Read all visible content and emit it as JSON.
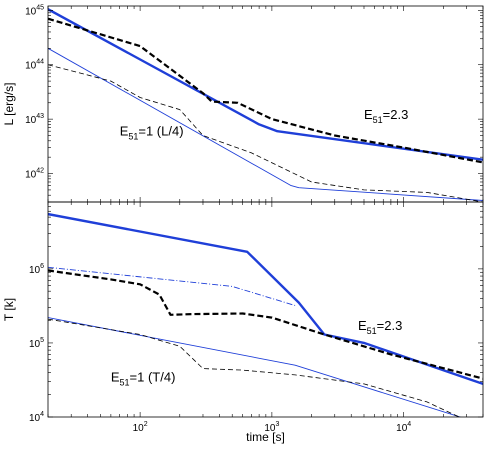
{
  "chart_data": [
    {
      "type": "line",
      "ylabel": "L [erg/s]",
      "xlabel": "",
      "xscale": "log",
      "yscale": "log",
      "xlim": [
        20,
        40000
      ],
      "ylim": [
        3e+41,
        1.2e+45
      ],
      "yticks": [
        {
          "value": 1e+42,
          "base": "10",
          "exp": "42"
        },
        {
          "value": 1e+43,
          "base": "10",
          "exp": "43"
        },
        {
          "value": 1e+44,
          "base": "10",
          "exp": "44"
        },
        {
          "value": 1e+45,
          "base": "10",
          "exp": "45"
        }
      ],
      "annotations": [
        {
          "id": "e23",
          "pre": "E",
          "sub": "51",
          "post": "=2.3",
          "x": 5000,
          "y": 1e+43
        },
        {
          "id": "e1",
          "pre": "E",
          "sub": "51",
          "post": "=1 (L/4)",
          "x": 70,
          "y": 5e+42
        }
      ],
      "series": [
        {
          "id": "thick-solid",
          "color": "#1f3fd8",
          "width": 2.4,
          "dash": "",
          "points": [
            [
              20,
              1.05e+45
            ],
            [
              800,
              8e+42
            ],
            [
              1100,
              6e+42
            ],
            [
              40000,
              1.8e+42
            ]
          ]
        },
        {
          "id": "thick-dashed",
          "color": "#000000",
          "width": 2.2,
          "dash": "6,3",
          "points": [
            [
              20,
              7e+44
            ],
            [
              100,
              2.2e+44
            ],
            [
              300,
              3e+43
            ],
            [
              350,
              2.1e+43
            ],
            [
              550,
              2e+43
            ],
            [
              1000,
              1e+43
            ],
            [
              3000,
              5e+42
            ],
            [
              10000,
              3e+42
            ],
            [
              40000,
              1.6e+42
            ]
          ]
        },
        {
          "id": "thin-solid",
          "color": "#1f3fd8",
          "width": 0.9,
          "dash": "",
          "points": [
            [
              20,
              2e+44
            ],
            [
              1400,
              6e+41
            ],
            [
              1600,
              5.5e+41
            ],
            [
              40000,
              3.2e+41
            ]
          ]
        },
        {
          "id": "thin-dashed",
          "color": "#000000",
          "width": 0.8,
          "dash": "5,3",
          "points": [
            [
              20,
              1e+44
            ],
            [
              60,
              5e+43
            ],
            [
              100,
              2.5e+43
            ],
            [
              200,
              1.5e+43
            ],
            [
              300,
              5e+42
            ],
            [
              700,
              2.4e+42
            ],
            [
              2000,
              7e+41
            ],
            [
              5000,
              5e+41
            ],
            [
              15000,
              4.5e+41
            ],
            [
              40000,
              3e+41
            ]
          ]
        }
      ]
    },
    {
      "type": "line",
      "ylabel": "T [k]",
      "xlabel": "time [s]",
      "xscale": "log",
      "yscale": "log",
      "xlim": [
        20,
        40000
      ],
      "ylim": [
        10000,
        8000000
      ],
      "yticks": [
        {
          "value": 10000,
          "base": "10",
          "exp": "4"
        },
        {
          "value": 100000,
          "base": "10",
          "exp": "5"
        },
        {
          "value": 1000000,
          "base": "10",
          "exp": "6"
        }
      ],
      "xticks": [
        {
          "value": 100,
          "base": "10",
          "exp": "2"
        },
        {
          "value": 1000,
          "base": "10",
          "exp": "3"
        },
        {
          "value": 10000,
          "base": "10",
          "exp": "4"
        }
      ],
      "annotations": [
        {
          "id": "e23",
          "pre": "E",
          "sub": "51",
          "post": "=2.3",
          "x": 4500,
          "y": 150000
        },
        {
          "id": "e1",
          "pre": "E",
          "sub": "51",
          "post": "=1 (T/4)",
          "x": 60,
          "y": 30000
        }
      ],
      "series": [
        {
          "id": "thick-solid",
          "color": "#1f3fd8",
          "width": 2.4,
          "dash": "",
          "points": [
            [
              20,
              5500000.0
            ],
            [
              650,
              1700000.0
            ],
            [
              1600,
              350000.0
            ],
            [
              2500,
              130000.0
            ],
            [
              5000,
              100000.0
            ],
            [
              40000,
              28000.0
            ]
          ]
        },
        {
          "id": "thin-dashdot",
          "color": "#1f3fd8",
          "width": 0.9,
          "dash": "6,2,1,2",
          "points": [
            [
              20,
              1050000.0
            ],
            [
              500,
              580000.0
            ],
            [
              1500,
              320000.0
            ]
          ]
        },
        {
          "id": "thick-dashed",
          "color": "#000000",
          "width": 2.2,
          "dash": "6,3",
          "points": [
            [
              20,
              950000.0
            ],
            [
              60,
              720000.0
            ],
            [
              100,
              620000.0
            ],
            [
              140,
              450000.0
            ],
            [
              170,
              240000.0
            ],
            [
              250,
              245000.0
            ],
            [
              600,
              250000.0
            ],
            [
              1000,
              220000.0
            ],
            [
              2500,
              130000.0
            ],
            [
              8000,
              70000.0
            ],
            [
              40000,
              33000.0
            ]
          ]
        },
        {
          "id": "thin-solid",
          "color": "#1f3fd8",
          "width": 0.9,
          "dash": "",
          "points": [
            [
              20,
              220000.0
            ],
            [
              1500,
              50000.0
            ],
            [
              40000,
              8000.0
            ]
          ]
        },
        {
          "id": "thin-dashed",
          "color": "#000000",
          "width": 0.8,
          "dash": "5,3",
          "points": [
            [
              20,
              210000.0
            ],
            [
              100,
              130000.0
            ],
            [
              200,
              90000.0
            ],
            [
              300,
              45000.0
            ],
            [
              600,
              43000.0
            ],
            [
              1500,
              37000.0
            ],
            [
              5000,
              28000.0
            ],
            [
              15000,
              16000.0
            ],
            [
              30000,
              9000.0
            ]
          ]
        }
      ]
    }
  ]
}
